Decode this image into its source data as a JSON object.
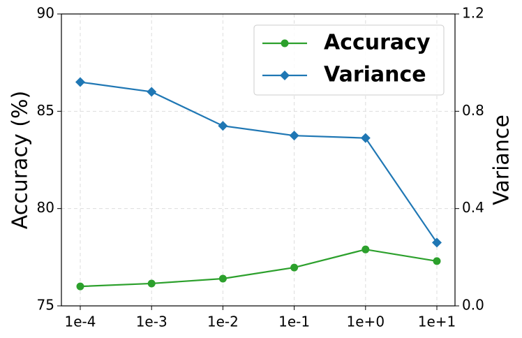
{
  "chart_data": {
    "type": "line",
    "categories": [
      "1e-4",
      "1e-3",
      "1e-2",
      "1e-1",
      "1e+0",
      "1e+1"
    ],
    "ylabel": "Accuracy (%)",
    "y2label": "Variance",
    "ylim": [
      75,
      90
    ],
    "yticks": [
      75,
      80,
      85,
      90
    ],
    "y2lim": [
      0,
      1.2
    ],
    "y2ticks": [
      {
        "value": 0,
        "label": "0.0"
      },
      0.4,
      0.8,
      1.2
    ],
    "grid": true,
    "legend": "upper right",
    "series": [
      {
        "name": "Accuracy",
        "color": "#2ca02c",
        "marker": "circle",
        "values": [
          76.0,
          76.15,
          76.4,
          76.97,
          77.9,
          77.3
        ]
      },
      {
        "name": "Variance",
        "color": "#1f77b4",
        "marker": "diamond",
        "axis": "y2",
        "values": [
          0.92,
          0.88,
          0.74,
          0.7,
          0.69,
          0.26
        ]
      }
    ]
  }
}
